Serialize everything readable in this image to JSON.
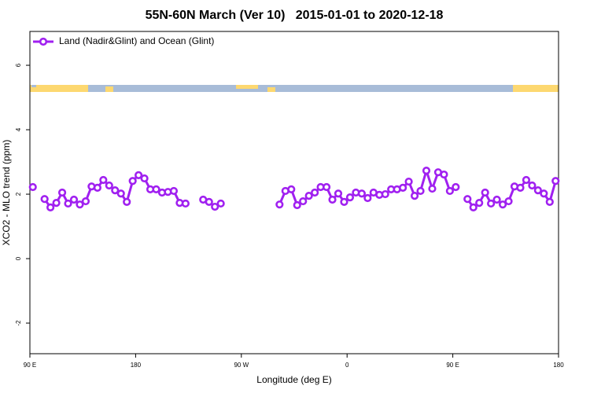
{
  "chart_data": {
    "type": "line",
    "title": "55N-60N March (Ver 10)   2015-01-01 to 2020-12-18",
    "x_label": "Longitude (deg E)",
    "y_label": "XCO2 - MLO trend (ppm)",
    "xlim": [
      90,
      540
    ],
    "xticks": [
      {
        "value": 90,
        "label": "90 E"
      },
      180,
      {
        "value": 270,
        "label": "90 W"
      },
      {
        "value": 360,
        "label": "0"
      },
      {
        "value": 450,
        "label": "90 E"
      },
      {
        "value": 540,
        "label": "180"
      }
    ],
    "ylim": [
      -2.95,
      7.05
    ],
    "yticks": [
      -2,
      0,
      2,
      4,
      6
    ],
    "legend": "top-left",
    "x": [
      92.5,
      97.5,
      102.5,
      107.5,
      112.5,
      117.5,
      122.5,
      127.5,
      132.5,
      137.5,
      142.5,
      147.5,
      152.5,
      157.5,
      162.5,
      167.5,
      172.5,
      177.5,
      182.5,
      187.5,
      192.5,
      197.5,
      202.5,
      207.5,
      212.5,
      217.5,
      222.5,
      227.5,
      232.5,
      237.5,
      242.5,
      247.5,
      252.5,
      257.5,
      262.5,
      267.5,
      272.5,
      277.5,
      282.5,
      287.5,
      292.5,
      297.5,
      302.5,
      307.5,
      312.5,
      317.5,
      322.5,
      327.5,
      332.5,
      337.5,
      342.5,
      347.5,
      352.5,
      357.5,
      362.5,
      367.5,
      372.5,
      377.5,
      382.5,
      387.5,
      392.5,
      397.5,
      402.5,
      407.5,
      412.5,
      417.5,
      422.5,
      427.5,
      432.5,
      437.5,
      442.5,
      447.5,
      452.5,
      457.5,
      462.5,
      467.5,
      472.5,
      477.5,
      482.5,
      487.5,
      492.5,
      497.5,
      502.5,
      507.5,
      512.5,
      517.5,
      522.5,
      527.5,
      532.5,
      537.5
    ],
    "series": [
      {
        "name": "Land (Nadir&Glint) and Ocean (Glint)",
        "color": "#a020f0",
        "values": [
          2.22,
          null,
          1.85,
          1.59,
          1.73,
          2.05,
          1.71,
          1.83,
          1.68,
          1.78,
          2.24,
          2.2,
          2.44,
          2.27,
          2.12,
          2.02,
          1.76,
          2.41,
          2.59,
          2.49,
          2.15,
          2.15,
          2.05,
          2.07,
          2.1,
          1.73,
          1.71,
          null,
          null,
          1.83,
          1.76,
          1.61,
          1.71,
          null,
          null,
          null,
          null,
          null,
          null,
          null,
          null,
          null,
          1.68,
          2.1,
          2.15,
          1.66,
          1.78,
          1.95,
          2.05,
          2.22,
          2.22,
          1.83,
          2.02,
          1.76,
          1.9,
          2.05,
          2.02,
          1.88,
          2.05,
          1.98,
          2.0,
          2.15,
          2.15,
          2.2,
          2.39,
          1.95,
          2.1,
          2.73,
          2.17,
          2.68,
          2.61,
          2.1,
          2.22,
          null,
          1.85,
          1.59,
          1.73,
          2.05,
          1.71,
          1.83,
          1.68,
          1.78,
          2.24,
          2.2,
          2.44,
          2.27,
          2.12,
          2.02,
          1.76,
          2.41
        ]
      }
    ]
  }
}
